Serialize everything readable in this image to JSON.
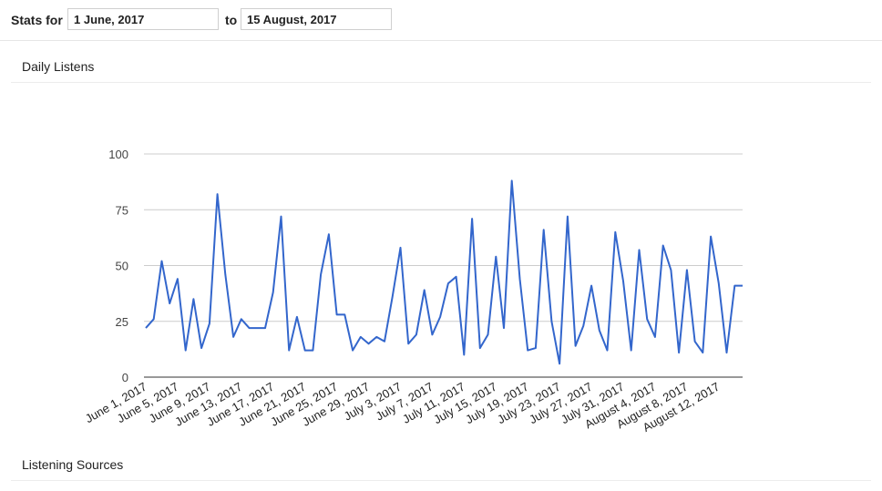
{
  "header": {
    "stats_for_label": "Stats for",
    "from_value": "1 June, 2017",
    "to_label": "to",
    "to_value": "15 August, 2017"
  },
  "sections": {
    "daily_title": "Daily Listens",
    "sources_title": "Listening Sources"
  },
  "chart_data": {
    "type": "line",
    "title": "",
    "xlabel": "",
    "ylabel": "",
    "ylim": [
      0,
      100
    ],
    "yticks": [
      0,
      25,
      50,
      75,
      100
    ],
    "grid": true,
    "legend": "none",
    "line_color": "#3366cc",
    "x_labels": [
      "June 1, 2017",
      "June 5, 2017",
      "June 9, 2017",
      "June 13, 2017",
      "June 17, 2017",
      "June 21, 2017",
      "June 25, 2017",
      "June 29, 2017",
      "July 3, 2017",
      "July 7, 2017",
      "July 11, 2017",
      "July 15, 2017",
      "July 19, 2017",
      "July 23, 2017",
      "July 27, 2017",
      "July 31, 2017",
      "August 4, 2017",
      "August 8, 2017",
      "August 12, 2017"
    ],
    "label_every": 4,
    "series": [
      {
        "values": [
          22,
          26,
          52,
          33,
          44,
          12,
          35,
          13,
          24,
          82,
          46,
          18,
          26,
          22,
          22,
          22,
          38,
          72,
          12,
          27,
          12,
          12,
          46,
          64,
          28,
          28,
          12,
          18,
          15,
          18,
          16,
          36,
          58,
          15,
          19,
          39,
          19,
          27,
          42,
          45,
          10,
          71,
          13,
          19,
          54,
          22,
          88,
          44,
          12,
          13,
          66,
          25,
          6,
          72,
          14,
          23,
          41,
          21,
          12,
          65,
          43,
          12,
          57,
          26,
          18,
          59,
          48,
          11,
          48,
          16,
          11,
          63,
          42,
          11,
          41,
          41
        ]
      }
    ]
  }
}
